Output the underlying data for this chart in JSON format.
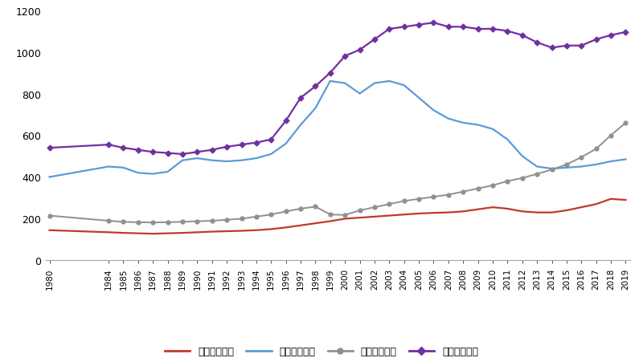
{
  "years": [
    1980,
    1984,
    1985,
    1986,
    1987,
    1988,
    1989,
    1990,
    1991,
    1992,
    1993,
    1994,
    1995,
    1996,
    1997,
    1998,
    1999,
    2000,
    2001,
    2002,
    2003,
    2004,
    2005,
    2006,
    2007,
    2008,
    2009,
    2010,
    2011,
    2012,
    2013,
    2014,
    2015,
    2016,
    2017,
    2018,
    2019
  ],
  "rural_primary": [
    145,
    135,
    132,
    130,
    128,
    130,
    132,
    135,
    138,
    140,
    142,
    145,
    150,
    158,
    168,
    178,
    188,
    200,
    205,
    210,
    215,
    220,
    225,
    228,
    230,
    235,
    245,
    255,
    248,
    235,
    230,
    230,
    240,
    255,
    270,
    295,
    290
  ],
  "rural_middle": [
    400,
    450,
    445,
    420,
    415,
    425,
    480,
    490,
    480,
    475,
    480,
    490,
    510,
    560,
    650,
    730,
    860,
    850,
    800,
    850,
    860,
    840,
    780,
    720,
    680,
    660,
    650,
    630,
    580,
    500,
    450,
    440,
    445,
    450,
    460,
    475,
    485
  ],
  "urban_primary": [
    215,
    190,
    185,
    183,
    182,
    183,
    185,
    188,
    190,
    195,
    200,
    210,
    220,
    235,
    248,
    258,
    220,
    218,
    240,
    255,
    270,
    285,
    295,
    305,
    315,
    330,
    345,
    360,
    380,
    395,
    415,
    435,
    460,
    495,
    535,
    600,
    660
  ],
  "urban_middle": [
    540,
    555,
    540,
    530,
    520,
    515,
    510,
    520,
    530,
    545,
    555,
    565,
    580,
    670,
    780,
    835,
    900,
    980,
    1010,
    1060,
    1110,
    1120,
    1130,
    1140,
    1120,
    1120,
    1110,
    1110,
    1100,
    1080,
    1045,
    1020,
    1030,
    1030,
    1060,
    1080,
    1095
  ],
  "rural_primary_color": "#c0392b",
  "rural_middle_color": "#5b9bd5",
  "urban_primary_color": "#909090",
  "urban_middle_color": "#7030a0",
  "ylim": [
    0,
    1200
  ],
  "yticks": [
    0,
    200,
    400,
    600,
    800,
    1000,
    1200
  ],
  "legend_labels": [
    "农村小学规模",
    "农村中学规模",
    "城市小学规模",
    "城市中学规模"
  ],
  "background_color": "#ffffff"
}
